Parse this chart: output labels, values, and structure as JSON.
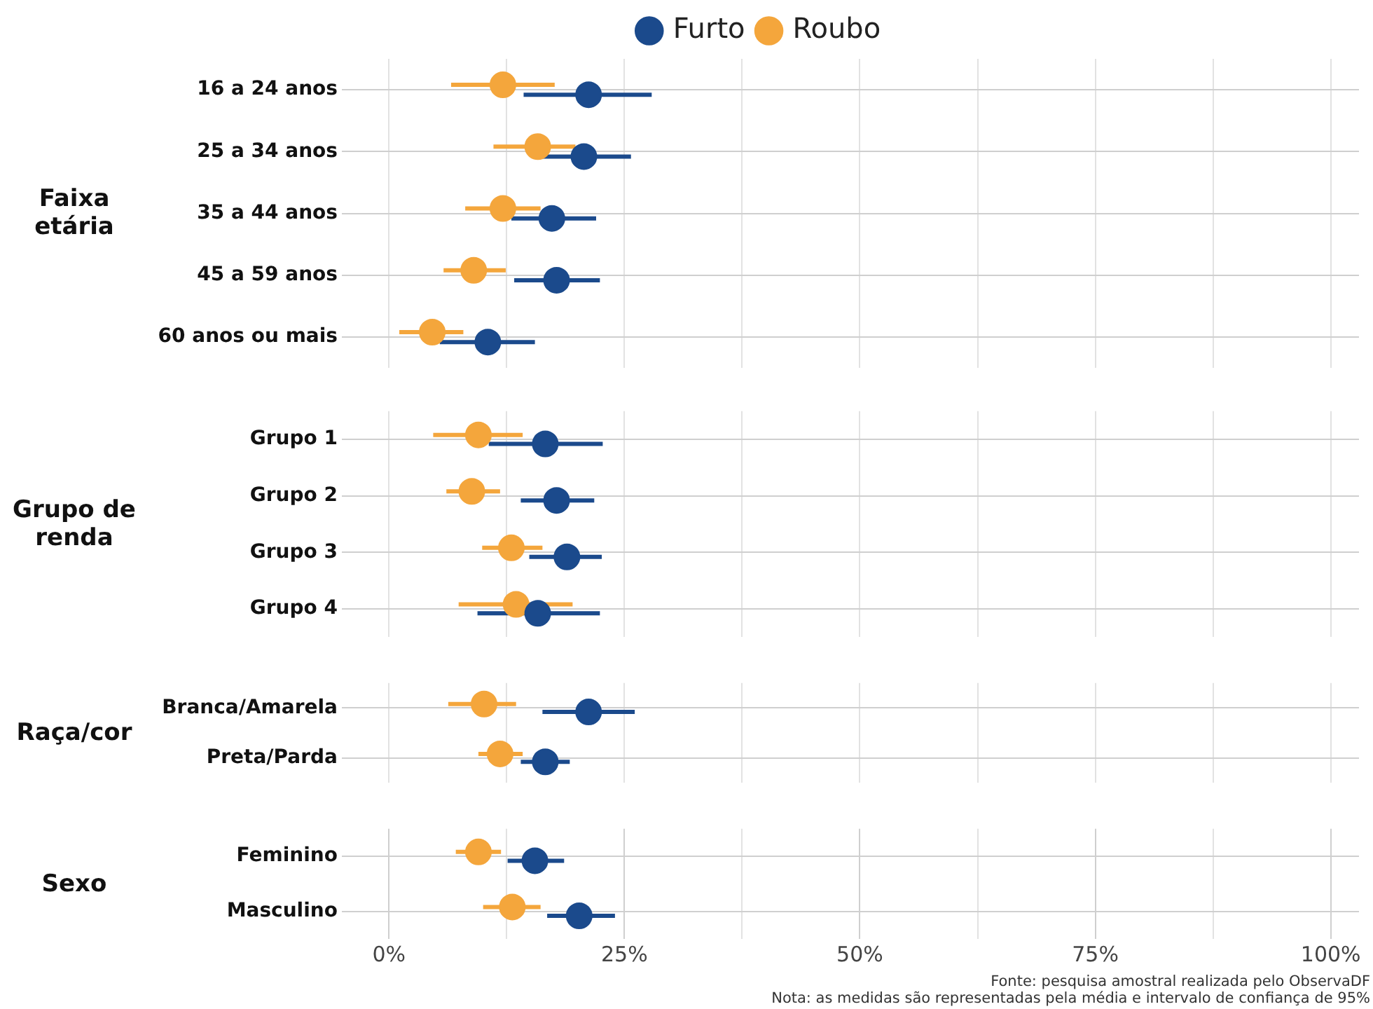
{
  "chart_data": [
    {
      "type": "scatter",
      "orientation": "horizontal",
      "ylabel": "Faixa etária",
      "categories": [
        "16 a 24 anos",
        "25 a 34 anos",
        "35 a 44 anos",
        "45 a 59 anos",
        "60 anos ou mais"
      ],
      "series": [
        {
          "name": "Furto",
          "color": "#1b4a8c",
          "values": [
            21.2,
            20.7,
            17.3,
            17.8,
            10.5
          ],
          "errors": [
            [
              14.3,
              27.9
            ],
            [
              16.1,
              25.7
            ],
            [
              13.0,
              22.0
            ],
            [
              13.3,
              22.4
            ],
            [
              5.4,
              15.5
            ]
          ]
        },
        {
          "name": "Roubo",
          "color": "#f4a63c",
          "values": [
            12.1,
            15.8,
            12.1,
            9.0,
            4.6
          ],
          "errors": [
            [
              6.6,
              17.6
            ],
            [
              11.1,
              19.8
            ],
            [
              8.1,
              16.1
            ],
            [
              5.8,
              12.4
            ],
            [
              1.1,
              7.9
            ]
          ]
        }
      ],
      "xlim": [
        -5,
        103
      ],
      "xticks": [
        {
          "value": 0,
          "label": null
        },
        {
          "value": 12.5,
          "label": null
        },
        {
          "value": 25,
          "label": null
        },
        {
          "value": 37.5,
          "label": null
        },
        {
          "value": 50,
          "label": null
        },
        {
          "value": 62.5,
          "label": null
        },
        {
          "value": 75,
          "label": null
        },
        {
          "value": 87.5,
          "label": null
        },
        {
          "value": 100,
          "label": null
        }
      ],
      "grid": true,
      "legend": "top",
      "marker": "circle",
      "tick_labels": "y"
    },
    {
      "type": "scatter",
      "orientation": "horizontal",
      "ylabel": "Grupo de renda",
      "categories": [
        "Grupo 1",
        "Grupo 2",
        "Grupo 3",
        "Grupo 4"
      ],
      "series": [
        {
          "color": "#1b4a8c",
          "values": [
            16.6,
            17.8,
            18.9,
            15.8
          ],
          "errors": [
            [
              10.6,
              22.7
            ],
            [
              14.0,
              21.8
            ],
            [
              14.9,
              22.6
            ],
            [
              9.4,
              22.4
            ]
          ]
        },
        {
          "color": "#f4a63c",
          "values": [
            9.5,
            8.8,
            13.0,
            13.5
          ],
          "errors": [
            [
              4.7,
              14.2
            ],
            [
              6.1,
              11.8
            ],
            [
              9.9,
              16.3
            ],
            [
              7.4,
              19.5
            ]
          ]
        }
      ],
      "xlim": [
        -5,
        103
      ],
      "xticks": [
        {
          "value": 0,
          "label": null
        },
        {
          "value": 12.5,
          "label": null
        },
        {
          "value": 25,
          "label": null
        },
        {
          "value": 37.5,
          "label": null
        },
        {
          "value": 50,
          "label": null
        },
        {
          "value": 62.5,
          "label": null
        },
        {
          "value": 75,
          "label": null
        },
        {
          "value": 87.5,
          "label": null
        },
        {
          "value": 100,
          "label": null
        }
      ],
      "grid": true,
      "marker": "circle",
      "tick_labels": "y"
    },
    {
      "type": "scatter",
      "orientation": "horizontal",
      "ylabel": "Raça/cor",
      "categories": [
        "Branca/Amarela",
        "Preta/Parda"
      ],
      "series": [
        {
          "color": "#1b4a8c",
          "values": [
            21.2,
            16.6
          ],
          "errors": [
            [
              16.3,
              26.1
            ],
            [
              14.0,
              19.2
            ]
          ]
        },
        {
          "color": "#f4a63c",
          "values": [
            10.1,
            11.8
          ],
          "errors": [
            [
              6.3,
              13.5
            ],
            [
              9.5,
              14.2
            ]
          ]
        }
      ],
      "xlim": [
        -5,
        103
      ],
      "xticks": [
        {
          "value": 0,
          "label": null
        },
        {
          "value": 12.5,
          "label": null
        },
        {
          "value": 25,
          "label": null
        },
        {
          "value": 37.5,
          "label": null
        },
        {
          "value": 50,
          "label": null
        },
        {
          "value": 62.5,
          "label": null
        },
        {
          "value": 75,
          "label": null
        },
        {
          "value": 87.5,
          "label": null
        },
        {
          "value": 100,
          "label": null
        }
      ],
      "grid": true,
      "marker": "circle",
      "tick_labels": "y"
    },
    {
      "type": "scatter",
      "orientation": "horizontal",
      "ylabel": "Sexo",
      "categories": [
        "Feminino",
        "Masculino"
      ],
      "series": [
        {
          "color": "#1b4a8c",
          "values": [
            15.5,
            20.2
          ],
          "errors": [
            [
              12.6,
              18.6
            ],
            [
              16.8,
              24.0
            ]
          ]
        },
        {
          "color": "#f4a63c",
          "values": [
            9.5,
            13.1
          ],
          "errors": [
            [
              7.1,
              11.9
            ],
            [
              10.0,
              16.1
            ]
          ]
        }
      ],
      "xlim": [
        -5,
        103
      ],
      "xticks": [
        {
          "value": 0,
          "label": "0%"
        },
        {
          "value": 12.5,
          "label": null
        },
        {
          "value": 25,
          "label": "25%"
        },
        {
          "value": 37.5,
          "label": null
        },
        {
          "value": 50,
          "label": "50%"
        },
        {
          "value": 62.5,
          "label": null
        },
        {
          "value": 75,
          "label": "75%"
        },
        {
          "value": 87.5,
          "label": null
        },
        {
          "value": 100,
          "label": "100%"
        }
      ],
      "grid": true,
      "marker": "circle",
      "annotations": [
        "Fonte: pesquisa amostral realizada pelo ObservaDF",
        "Nota: as medidas são representadas pela média e intervalo de confiança de 95%"
      ]
    }
  ]
}
